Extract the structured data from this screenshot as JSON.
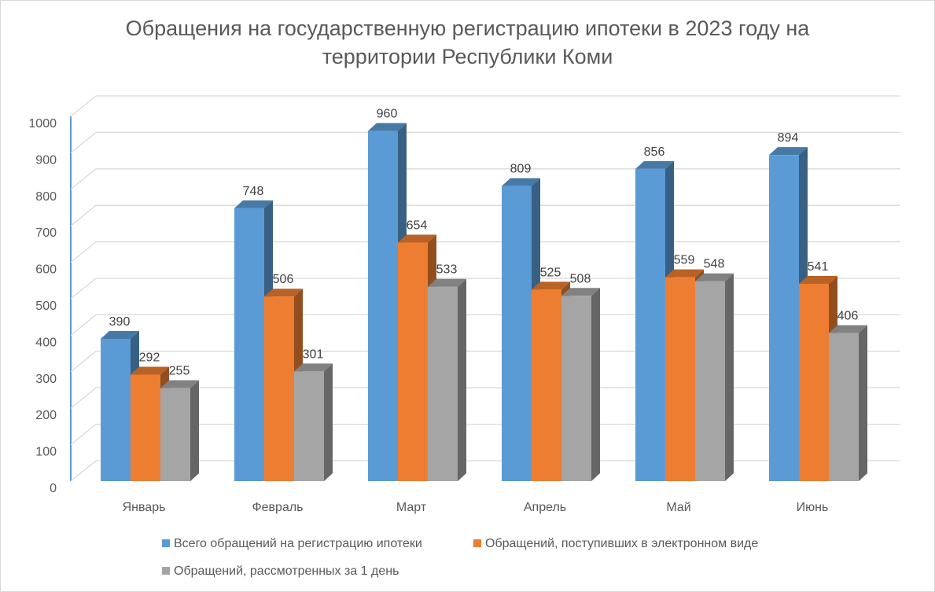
{
  "chart_data": {
    "type": "bar",
    "title_line1": "Обращения на государственную регистрацию ипотеки  в 2023 году на",
    "title_line2": "территории Республики Коми",
    "categories": [
      "Январь",
      "Февраль",
      "Март",
      "Апрель",
      "Май",
      "Июнь"
    ],
    "series": [
      {
        "name": "Всего обращений на регистрацию ипотеки",
        "color": "#5b9bd5",
        "values": [
          390,
          748,
          960,
          809,
          856,
          894
        ]
      },
      {
        "name": "Обращений, поступивших в электронном виде",
        "color": "#ed7d31",
        "values": [
          292,
          506,
          654,
          525,
          559,
          541
        ]
      },
      {
        "name": "Обращений, рассмотренных за 1 день",
        "color": "#a5a5a5",
        "values": [
          255,
          301,
          533,
          508,
          548,
          406
        ]
      }
    ],
    "yticks": [
      0,
      100,
      200,
      300,
      400,
      500,
      600,
      700,
      800,
      900,
      1000
    ],
    "ylim": [
      0,
      1000
    ],
    "grid": true,
    "legend_position": "bottom",
    "style": "3d-clustered-column"
  }
}
